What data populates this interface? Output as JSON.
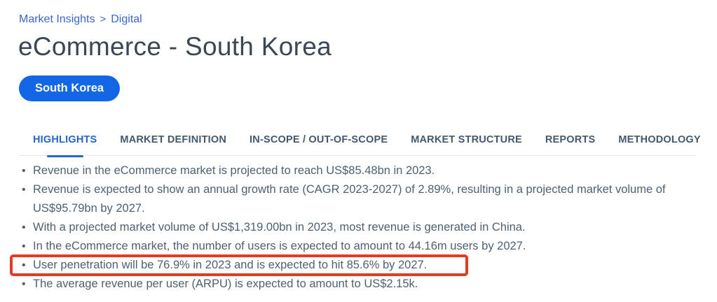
{
  "breadcrumb": {
    "items": [
      {
        "label": "Market Insights"
      },
      {
        "label": "Digital"
      }
    ],
    "separator": ">"
  },
  "page": {
    "title": "eCommerce - South Korea"
  },
  "region_tag": {
    "label": "South Korea"
  },
  "tabs": {
    "active": "HIGHLIGHTS",
    "items": [
      {
        "label": "HIGHLIGHTS"
      },
      {
        "label": "MARKET DEFINITION"
      },
      {
        "label": "IN-SCOPE / OUT-OF-SCOPE"
      },
      {
        "label": "MARKET STRUCTURE"
      },
      {
        "label": "REPORTS"
      },
      {
        "label": "METHODOLOGY"
      }
    ]
  },
  "highlights": {
    "bullets": [
      "Revenue in the eCommerce market is projected to reach US$85.48bn in 2023.",
      "Revenue is expected to show an annual growth rate (CAGR 2023-2027) of 2.89%, resulting in a projected market volume of US$95.79bn by 2027.",
      "With a projected market volume of US$1,319.00bn in 2023, most revenue is generated in China.",
      "In the eCommerce market, the number of users is expected to amount to 44.16m users by 2027.",
      "User penetration will be 76.9% in 2023 and is expected to hit 85.6% by 2027.",
      "The average revenue per user (ARPU) is expected to amount to US$2.15k."
    ]
  },
  "annotation": {
    "type": "red-highlight-box",
    "highlighted_text": "User penetration will be 76.9% in 2023 and is expected to hit 85.6% by 2027.",
    "color": "#e23b25"
  },
  "colors": {
    "accent_blue": "#1467e4",
    "link_blue": "#3d64ce",
    "active_tab_blue": "#2465cf",
    "title_color": "#3b4754",
    "body_text": "#4e6172",
    "divider": "#e3e7ec",
    "highlight_red": "#e23b25"
  }
}
